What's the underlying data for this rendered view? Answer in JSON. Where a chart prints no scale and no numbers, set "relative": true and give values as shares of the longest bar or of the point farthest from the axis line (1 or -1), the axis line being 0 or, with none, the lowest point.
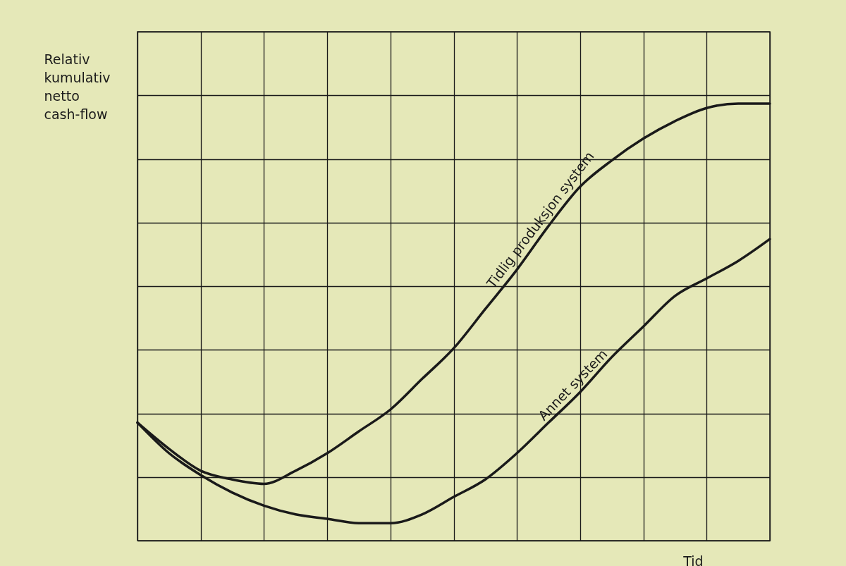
{
  "chart_data": {
    "type": "line",
    "relative": true,
    "xlabel": "Tid",
    "ylabel": "Relativ kumulativ netto cash-flow",
    "grid": true,
    "categories": [
      null,
      null,
      null,
      null,
      null,
      null,
      null,
      null,
      null,
      null,
      null,
      null,
      null,
      null,
      null,
      null,
      null,
      null,
      null,
      null,
      null
    ],
    "series": [
      {
        "name": "Tidlig produksjon system",
        "color": "#1a1a1a",
        "values": [
          0.27,
          0.21,
          0.16,
          0.14,
          0.13,
          0.16,
          0.2,
          0.25,
          0.3,
          0.37,
          0.44,
          0.53,
          0.62,
          0.72,
          0.81,
          0.87,
          0.92,
          0.96,
          0.99,
          1,
          1
        ]
      },
      {
        "name": "Annet system",
        "color": "#1a1a1a",
        "values": [
          0.27,
          0.2,
          0.15,
          0.11,
          0.08,
          0.06,
          0.05,
          0.04,
          0.04,
          0.06,
          0.1,
          0.14,
          0.2,
          0.27,
          0.34,
          0.42,
          0.49,
          0.56,
          0.6,
          0.64,
          0.69
        ]
      }
    ]
  }
}
